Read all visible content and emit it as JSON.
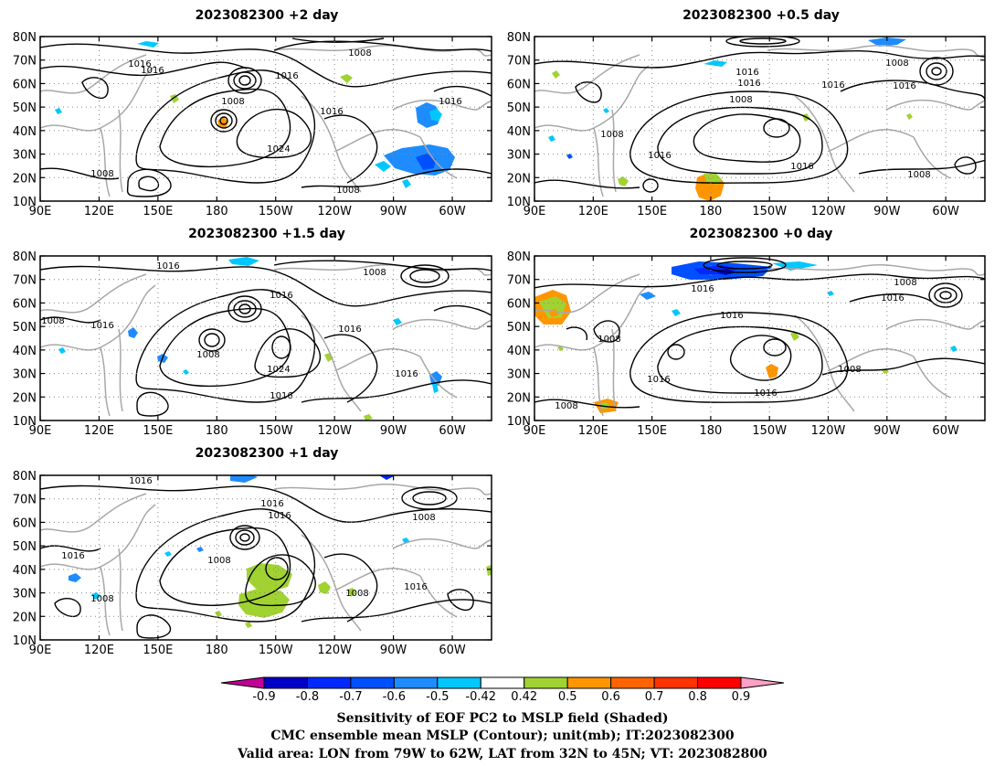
{
  "panels": [
    {
      "title": "2023082300  +2  day",
      "contour_labels": [
        "1016",
        "1016",
        "1008",
        "1016",
        "1008",
        "1016",
        "1016",
        "1024",
        "1008",
        "1008"
      ]
    },
    {
      "title": "2023082300  +0.5  day",
      "contour_labels": [
        "1016",
        "1016",
        "1008",
        "1008",
        "1016",
        "1016",
        "1008",
        "1016",
        "1016",
        "1008"
      ]
    },
    {
      "title": "2023082300  +1.5  day",
      "contour_labels": [
        "1016",
        "1008",
        "1008",
        "1016",
        "1016",
        "1008",
        "1024",
        "1016",
        "1016",
        "1016"
      ]
    },
    {
      "title": "2023082300  +0  day",
      "contour_labels": [
        "1008",
        "1016",
        "1016",
        "1016",
        "1008",
        "1016",
        "1016",
        "1008",
        "1008"
      ]
    },
    {
      "title": "2023082300  +1  day",
      "contour_labels": [
        "1016",
        "1016",
        "1016",
        "1008",
        "1016",
        "1008",
        "1008",
        "1008",
        "1016"
      ]
    }
  ],
  "map": {
    "lat_ticks": [
      "80N",
      "70N",
      "60N",
      "50N",
      "40N",
      "30N",
      "20N",
      "10N"
    ],
    "lon_ticks": [
      "90E",
      "120E",
      "150E",
      "180",
      "150W",
      "120W",
      "90W",
      "60W"
    ],
    "lat_range": [
      10,
      80
    ],
    "lon_ticks_deg": [
      90,
      120,
      150,
      180,
      210,
      240,
      270,
      300
    ],
    "lon_range": [
      90,
      320
    ],
    "colors": {
      "contour": "#000000",
      "coastline": "#a8a8a8",
      "grid": "#888888"
    }
  },
  "colorbar": {
    "labels": [
      "-0.9",
      "-0.8",
      "-0.7",
      "-0.6",
      "-0.5",
      "-0.42",
      "0.42",
      "0.5",
      "0.6",
      "0.7",
      "0.8",
      "0.9"
    ],
    "colors": [
      "#c20096",
      "#0000c8",
      "#0028ff",
      "#0050ff",
      "#1e8cff",
      "#00c8ff",
      "#ffffff",
      "#a0d232",
      "#ff9600",
      "#ff6400",
      "#ff3200",
      "#ff0000",
      "#ffa0c8"
    ]
  },
  "caption": [
    "Sensitivity of EOF PC2 to MSLP field (Shaded)",
    "CMC ensemble mean MSLP (Contour); unit(mb); IT:2023082300",
    "Valid area: LON from 79W to 62W, LAT from 32N to 45N; VT: 2023082800"
  ]
}
